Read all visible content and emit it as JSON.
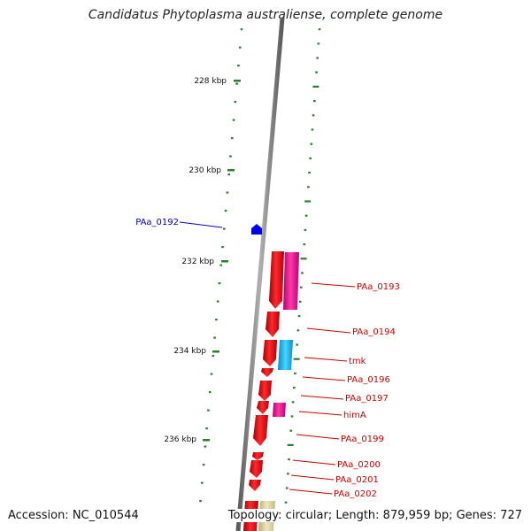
{
  "title": "Candidatus Phytoplasma australiense, complete genome",
  "footer": {
    "accession": "Accession: NC_010544",
    "summary": "Topology: circular; Length: 879,959 bp; Genes: 727"
  },
  "colors": {
    "backbone": "#808080",
    "gc_skew": "#2e7d32",
    "forward_gene": "#e8101a",
    "reverse_gene": "#e8108a",
    "trna": "#1ab0e8",
    "label_reverse_strand": "#0000cc",
    "label_forward_strand": "#cc0000",
    "rrna": "#d8cfa0"
  },
  "ticks": [
    {
      "label": "228 kbp"
    },
    {
      "label": "230 kbp"
    },
    {
      "label": "232 kbp"
    },
    {
      "label": "234 kbp"
    },
    {
      "label": "236 kbp"
    }
  ],
  "genes": [
    {
      "name": "PAa_0192",
      "strand": "reverse",
      "type": "cds"
    },
    {
      "name": "PAa_0193",
      "strand": "forward",
      "type": "cds"
    },
    {
      "name": "PAa_0194",
      "strand": "forward",
      "type": "cds"
    },
    {
      "name": "tmk",
      "strand": "forward",
      "type": "cds"
    },
    {
      "name": "PAa_0196",
      "strand": "forward",
      "type": "cds"
    },
    {
      "name": "PAa_0197",
      "strand": "forward",
      "type": "cds"
    },
    {
      "name": "himA",
      "strand": "forward",
      "type": "cds"
    },
    {
      "name": "PAa_0199",
      "strand": "forward",
      "type": "cds"
    },
    {
      "name": "PAa_0200",
      "strand": "forward",
      "type": "cds"
    },
    {
      "name": "PAa_0201",
      "strand": "forward",
      "type": "cds"
    },
    {
      "name": "PAa_0202",
      "strand": "forward",
      "type": "cds"
    }
  ]
}
